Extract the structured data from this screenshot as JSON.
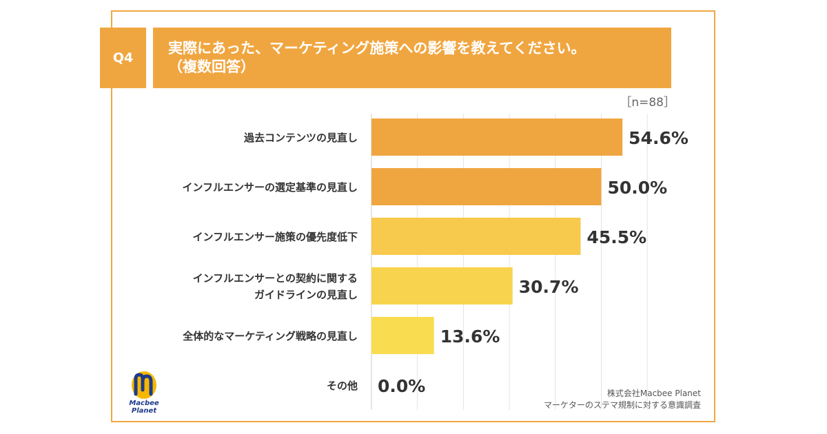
{
  "question": {
    "number": "Q4",
    "title_line1": "実際にあった、マーケティング施策への影響を教えてください。",
    "title_line2": "（複数回答）"
  },
  "sample_size": "［n=88］",
  "credit": {
    "company": "株式会社Macbee Planet",
    "survey": "マーケターのステマ規制に対する意識調査"
  },
  "logo": {
    "line1": "Macbee",
    "line2": "Planet",
    "icon": "macbee-m-logo-icon"
  },
  "colors": {
    "accent": "#f0a640",
    "bar_high": "#f0a640",
    "bar_mid": "#f7c94c",
    "bar_low": "#f9dc50"
  },
  "chart_data": {
    "type": "bar",
    "orientation": "horizontal",
    "categories": [
      [
        "過去コンテンツの見直し"
      ],
      [
        "インフルエンサーの選定基準の見直し"
      ],
      [
        "インフルエンサー施策の優先度低下"
      ],
      [
        "インフルエンサーとの契約に関する",
        "ガイドラインの見直し"
      ],
      [
        "全体的なマーケティング戦略の見直し"
      ],
      [
        "その他"
      ]
    ],
    "values": [
      54.6,
      50.0,
      45.5,
      30.7,
      13.6,
      0.0
    ],
    "value_labels": [
      "54.6%",
      "50.0%",
      "45.5%",
      "30.7%",
      "13.6%",
      "0.0%"
    ],
    "bar_colors": [
      "#f0a640",
      "#f0a640",
      "#f7c94c",
      "#f8d44e",
      "#f9dc50",
      "#f9dc50"
    ],
    "xlim": [
      0,
      60
    ],
    "grid": true,
    "legend": "none"
  }
}
